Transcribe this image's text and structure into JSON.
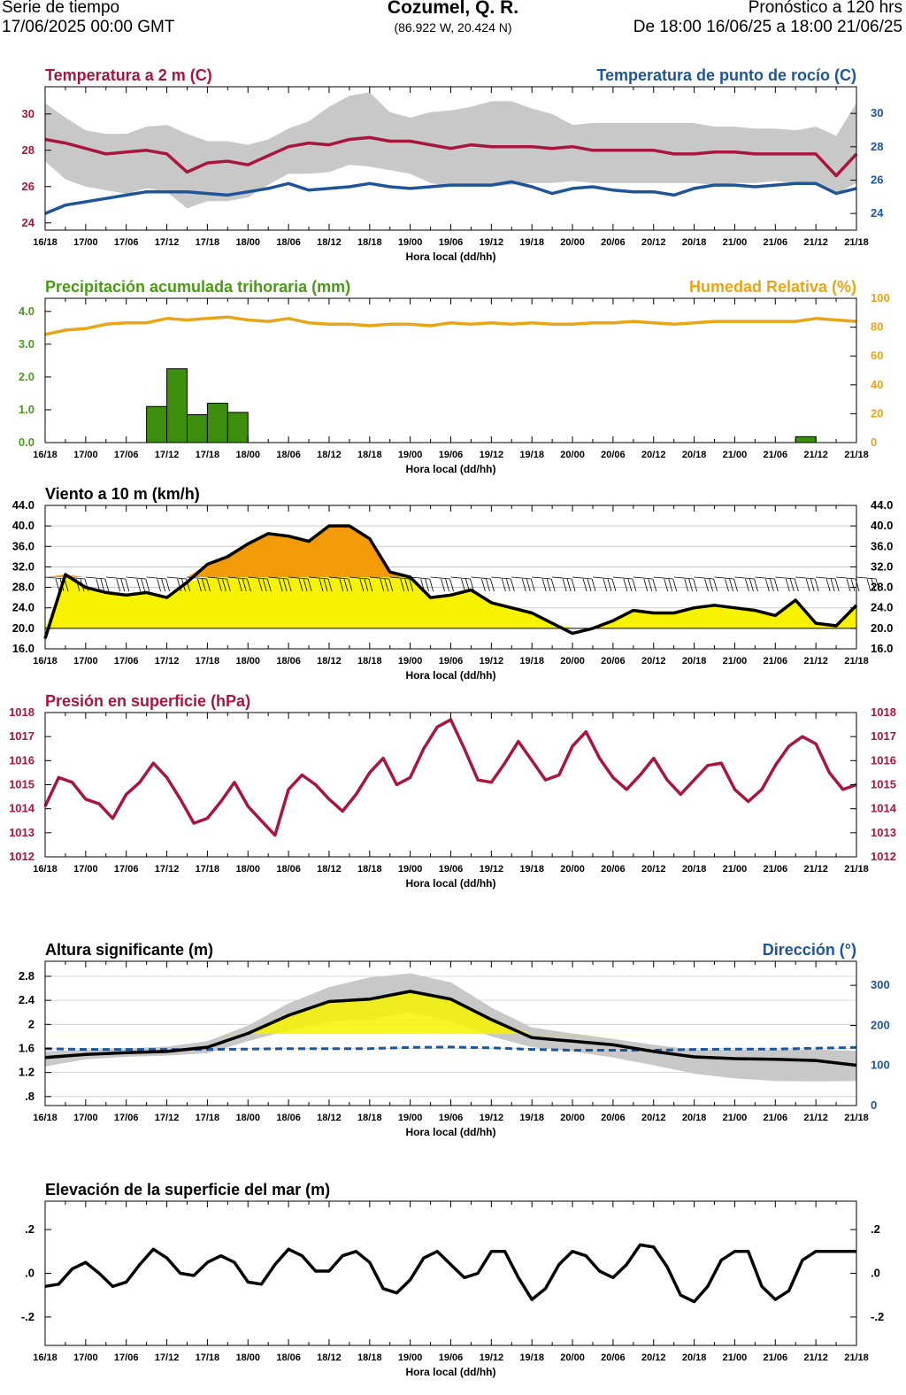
{
  "header": {
    "left_line1": "Serie de tiempo",
    "left_line2": "17/06/2025 00:00 GMT",
    "title": "Cozumel, Q. R.",
    "coords": "(86.922 W, 20.424 N)",
    "right_line1": "Pronóstico a 120 hrs",
    "right_line2": "De 18:00 16/06/25 a 18:00 21/06/25"
  },
  "colors": {
    "temp": "#a8163f",
    "dew": "#1d5597",
    "precip_label": "#4a9a15",
    "precip_bar": "#3e8e0d",
    "humidity": "#e8a516",
    "wind_high": "#f39a08",
    "wind_low": "#f7f300",
    "band": "#c8c8c8",
    "dir": "#1d5597"
  },
  "x_axis": {
    "ticks": [
      "16/18",
      "17/00",
      "17/06",
      "17/12",
      "17/18",
      "18/00",
      "18/06",
      "18/12",
      "18/18",
      "19/00",
      "19/06",
      "19/12",
      "19/18",
      "20/00",
      "20/06",
      "20/12",
      "20/18",
      "21/00",
      "21/06",
      "21/12",
      "21/18"
    ],
    "label": "Hora local (dd/hh)"
  },
  "chart_data": [
    {
      "type": "line",
      "title": "Temperatura a 2 m (C)",
      "title_right": "Temperatura de punto de rocío (C)",
      "x_hours": [
        0,
        3,
        6,
        9,
        12,
        15,
        18,
        21,
        24,
        27,
        30,
        33,
        36,
        39,
        42,
        45,
        48,
        51,
        54,
        57,
        60,
        63,
        66,
        69,
        72,
        75,
        78,
        81,
        84,
        87,
        90,
        93,
        96,
        99,
        102,
        105,
        108,
        111,
        114,
        117,
        120
      ],
      "ylim_left": [
        23.6,
        31.5
      ],
      "left_ticks": [
        24,
        26,
        28,
        30
      ],
      "ylim_right": [
        23.0,
        31.6
      ],
      "right_ticks": [
        24,
        26,
        28,
        30
      ],
      "series": [
        {
          "name": "Temperatura a 2 m",
          "axis": "left",
          "values": [
            28.6,
            28.4,
            28.1,
            27.8,
            27.9,
            28.0,
            27.8,
            26.8,
            27.3,
            27.4,
            27.2,
            27.7,
            28.2,
            28.4,
            28.3,
            28.6,
            28.7,
            28.5,
            28.5,
            28.3,
            28.1,
            28.3,
            28.2,
            28.2,
            28.2,
            28.1,
            28.2,
            28.0,
            28.0,
            28.0,
            28.0,
            27.8,
            27.8,
            27.9,
            27.9,
            27.8,
            27.8,
            27.8,
            27.8,
            26.6,
            27.8
          ]
        },
        {
          "name": "Temperatura de punto de rocío",
          "axis": "right",
          "values": [
            24.0,
            24.5,
            24.7,
            24.9,
            25.1,
            25.3,
            25.3,
            25.3,
            25.2,
            25.1,
            25.3,
            25.5,
            25.8,
            25.4,
            25.5,
            25.6,
            25.8,
            25.6,
            25.5,
            25.6,
            25.7,
            25.7,
            25.7,
            25.9,
            25.6,
            25.2,
            25.5,
            25.6,
            25.4,
            25.3,
            25.3,
            25.1,
            25.5,
            25.7,
            25.7,
            25.6,
            25.7,
            25.8,
            25.8,
            25.2,
            25.5
          ]
        }
      ],
      "band_left_upper": [
        30.6,
        29.8,
        29.1,
        28.9,
        28.9,
        29.3,
        29.4,
        28.9,
        28.5,
        28.5,
        28.3,
        28.6,
        29.2,
        29.6,
        30.4,
        31.0,
        31.2,
        30.1,
        29.8,
        30.1,
        30.2,
        30.4,
        30.7,
        30.7,
        30.3,
        30.0,
        29.4,
        29.5,
        29.5,
        29.5,
        29.5,
        29.5,
        29.5,
        29.3,
        29.3,
        29.2,
        29.2,
        29.1,
        29.3,
        28.8,
        30.6
      ],
      "band_left_lower": [
        27.4,
        26.4,
        26.0,
        25.8,
        25.6,
        25.9,
        25.7,
        24.8,
        25.2,
        25.2,
        25.4,
        26.1,
        26.7,
        26.7,
        26.8,
        27.2,
        27.1,
        26.9,
        26.7,
        26.2,
        26.0,
        26.1,
        26.0,
        26.1,
        26.2,
        26.2,
        26.3,
        26.2,
        26.2,
        26.2,
        26.2,
        26.2,
        26.2,
        26.1,
        26.2,
        26.2,
        26.3,
        26.2,
        26.1,
        25.6,
        26.2
      ]
    },
    {
      "type": "bar",
      "title": "Precipitación acumulada trihoraria (mm)",
      "title_right": "Humedad Relativa (%)",
      "ylim_left": [
        0,
        4.4
      ],
      "left_ticks": [
        0,
        1,
        2,
        3,
        4
      ],
      "left_tick_labels": [
        "0.0",
        "1.0",
        "2.0",
        "3.0",
        "4.0"
      ],
      "ylim_right": [
        0,
        100
      ],
      "right_ticks": [
        0,
        20,
        40,
        60,
        80,
        100
      ],
      "bars": [
        {
          "start_hour": 15,
          "end_hour": 18,
          "value": 1.1
        },
        {
          "start_hour": 18,
          "end_hour": 21,
          "value": 2.25
        },
        {
          "start_hour": 21,
          "end_hour": 24,
          "value": 0.85
        },
        {
          "start_hour": 24,
          "end_hour": 27,
          "value": 1.2
        },
        {
          "start_hour": 27,
          "end_hour": 30,
          "value": 0.92
        },
        {
          "start_hour": 111,
          "end_hour": 114,
          "value": 0.18
        }
      ],
      "humidity_x_hours": [
        0,
        3,
        6,
        9,
        12,
        15,
        18,
        21,
        24,
        27,
        30,
        33,
        36,
        39,
        42,
        45,
        48,
        51,
        54,
        57,
        60,
        63,
        66,
        69,
        72,
        75,
        78,
        81,
        84,
        87,
        90,
        93,
        96,
        99,
        102,
        105,
        108,
        111,
        114,
        117,
        120
      ],
      "humidity_values": [
        75,
        78,
        79,
        82,
        83,
        83,
        86,
        85,
        86,
        87,
        85,
        84,
        86,
        83,
        82,
        82,
        81,
        82,
        82,
        81,
        83,
        82,
        83,
        82,
        83,
        82,
        82,
        83,
        83,
        84,
        83,
        82,
        83,
        84,
        84,
        84,
        84,
        84,
        86,
        85,
        84
      ]
    },
    {
      "type": "area",
      "title": "Viento a 10 m (km/h)",
      "ylim": [
        16.0,
        44.0
      ],
      "ticks": [
        16,
        20,
        24,
        28,
        32,
        36,
        40,
        44
      ],
      "tick_labels": [
        "16.0",
        "20.0",
        "24.0",
        "28.0",
        "32.0",
        "36.0",
        "40.0",
        "44.0"
      ],
      "fill_base": 20.0,
      "threshold": 30.0,
      "x_hours": [
        0,
        3,
        6,
        9,
        12,
        15,
        18,
        21,
        24,
        27,
        30,
        33,
        36,
        39,
        42,
        45,
        48,
        51,
        54,
        57,
        60,
        63,
        66,
        69,
        72,
        75,
        78,
        81,
        84,
        87,
        90,
        93,
        96,
        99,
        102,
        105,
        108,
        111,
        114,
        117,
        120
      ],
      "values": [
        18.0,
        30.5,
        28.0,
        27.0,
        26.5,
        27.0,
        26.0,
        29.0,
        32.5,
        34.0,
        36.5,
        38.5,
        38.0,
        37.0,
        40.0,
        40.0,
        37.5,
        31.0,
        30.0,
        26.0,
        26.5,
        27.5,
        25.0,
        24.0,
        23.0,
        21.0,
        19.0,
        20.0,
        21.5,
        23.5,
        23.0,
        23.0,
        24.0,
        24.5,
        24.0,
        23.5,
        22.5,
        25.5,
        21.0,
        20.5,
        24.5
      ],
      "barb_level": 30.0
    },
    {
      "type": "line",
      "title": "Presión en superficie (hPa)",
      "ylim": [
        1012,
        1018
      ],
      "ticks": [
        1012,
        1013,
        1014,
        1015,
        1016,
        1017,
        1018
      ],
      "x_hours": [
        0,
        2,
        4,
        6,
        8,
        10,
        12,
        14,
        16,
        18,
        20,
        22,
        24,
        26,
        28,
        30,
        32,
        34,
        36,
        38,
        40,
        42,
        44,
        46,
        48,
        50,
        52,
        54,
        56,
        58,
        60,
        62,
        64,
        66,
        68,
        70,
        72,
        74,
        76,
        78,
        80,
        82,
        84,
        86,
        88,
        90,
        92,
        94,
        96,
        98,
        100,
        102,
        104,
        106,
        108,
        110,
        112,
        114,
        116,
        118,
        120
      ],
      "values": [
        1014.1,
        1015.3,
        1015.1,
        1014.4,
        1014.2,
        1013.6,
        1014.6,
        1015.1,
        1015.9,
        1015.3,
        1014.4,
        1013.4,
        1013.6,
        1014.3,
        1015.1,
        1014.1,
        1013.5,
        1012.9,
        1014.8,
        1015.4,
        1015.0,
        1014.4,
        1013.9,
        1014.6,
        1015.5,
        1016.1,
        1015.0,
        1015.3,
        1016.5,
        1017.4,
        1017.7,
        1016.5,
        1015.2,
        1015.1,
        1015.9,
        1016.8,
        1016.0,
        1015.2,
        1015.4,
        1016.6,
        1017.2,
        1016.1,
        1015.3,
        1014.8,
        1015.4,
        1016.1,
        1015.2,
        1014.6,
        1015.2,
        1015.8,
        1015.9,
        1014.8,
        1014.3,
        1014.8,
        1015.8,
        1016.6,
        1017.0,
        1016.7,
        1015.5,
        1014.8,
        1015.0
      ]
    },
    {
      "type": "line",
      "title": "Altura significante (m)",
      "title_right": "Dirección (°)",
      "ylim_left": [
        0.65,
        3.05
      ],
      "left_ticks": [
        0.8,
        1.2,
        1.6,
        2.0,
        2.4,
        2.8
      ],
      "left_tick_labels": [
        ".8",
        "1.2",
        "1.6",
        "2",
        "2.4",
        "2.8"
      ],
      "ylim_right": [
        0,
        360
      ],
      "right_ticks": [
        0,
        100,
        200,
        300
      ],
      "x_hours": [
        0,
        6,
        12,
        18,
        24,
        30,
        36,
        42,
        48,
        54,
        60,
        66,
        72,
        78,
        84,
        90,
        96,
        102,
        108,
        114,
        120
      ],
      "height_values": [
        1.45,
        1.5,
        1.53,
        1.55,
        1.62,
        1.85,
        2.15,
        2.38,
        2.42,
        2.55,
        2.42,
        2.08,
        1.78,
        1.72,
        1.66,
        1.55,
        1.46,
        1.43,
        1.42,
        1.4,
        1.32
      ],
      "band_upper": [
        1.55,
        1.58,
        1.6,
        1.63,
        1.72,
        1.98,
        2.35,
        2.62,
        2.78,
        2.85,
        2.7,
        2.28,
        1.95,
        1.85,
        1.76,
        1.66,
        1.58,
        1.58,
        1.58,
        1.58,
        1.56
      ],
      "band_lower": [
        1.3,
        1.42,
        1.46,
        1.48,
        1.52,
        1.72,
        1.9,
        2.05,
        2.08,
        2.2,
        2.05,
        1.8,
        1.62,
        1.55,
        1.45,
        1.32,
        1.18,
        1.1,
        1.06,
        1.05,
        1.06
      ],
      "yellow_from": 1.84,
      "direction_values": [
        142,
        140,
        140,
        140,
        140,
        141,
        142,
        142,
        142,
        145,
        146,
        144,
        140,
        138,
        138,
        138,
        140,
        141,
        141,
        143,
        145
      ]
    },
    {
      "type": "line",
      "title": "Elevación de la superficie del mar (m)",
      "ylim": [
        -0.33,
        0.33
      ],
      "ticks": [
        -0.2,
        0,
        0.2
      ],
      "tick_labels": [
        "-.2",
        ".0",
        ".2"
      ],
      "x_hours": [
        0,
        2,
        4,
        6,
        8,
        10,
        12,
        14,
        16,
        18,
        20,
        22,
        24,
        26,
        28,
        30,
        32,
        34,
        36,
        38,
        40,
        42,
        44,
        46,
        48,
        50,
        52,
        54,
        56,
        58,
        60,
        62,
        64,
        66,
        68,
        70,
        72,
        74,
        76,
        78,
        80,
        82,
        84,
        86,
        88,
        90,
        92,
        94,
        96,
        98,
        100,
        102,
        104,
        106,
        108,
        110,
        112,
        114,
        116,
        118,
        120
      ],
      "values": [
        -0.06,
        -0.05,
        0.02,
        0.05,
        0.0,
        -0.06,
        -0.04,
        0.04,
        0.11,
        0.07,
        0.0,
        -0.01,
        0.05,
        0.08,
        0.05,
        -0.04,
        -0.05,
        0.04,
        0.11,
        0.08,
        0.01,
        0.01,
        0.08,
        0.1,
        0.05,
        -0.07,
        -0.09,
        -0.03,
        0.07,
        0.1,
        0.04,
        -0.02,
        0.0,
        0.1,
        0.1,
        -0.02,
        -0.12,
        -0.07,
        0.04,
        0.1,
        0.08,
        0.01,
        -0.02,
        0.04,
        0.13,
        0.12,
        0.03,
        -0.1,
        -0.13,
        -0.06,
        0.06,
        0.1,
        0.1,
        -0.06,
        -0.12,
        -0.08,
        0.06,
        0.1,
        0.1,
        0.1,
        0.1
      ]
    }
  ]
}
